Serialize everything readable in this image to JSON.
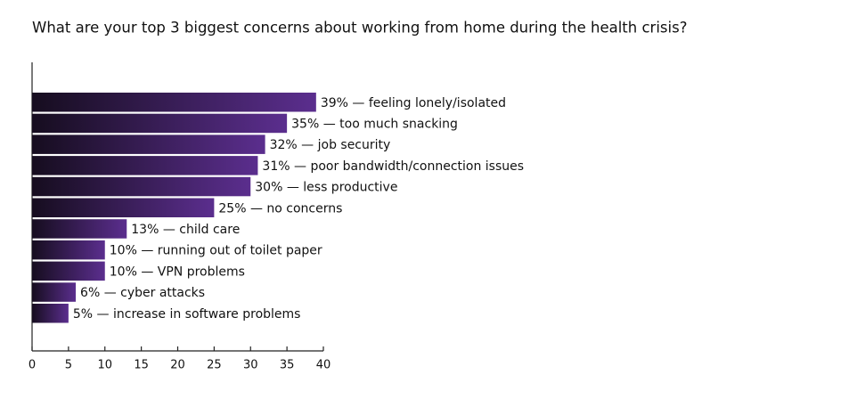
{
  "chart_data": {
    "type": "hbar",
    "title": "What are your top 3 biggest concerns about working from home during the health crisis?",
    "values": [
      39,
      35,
      32,
      31,
      30,
      25,
      13,
      10,
      10,
      6,
      5
    ],
    "value_labels": [
      "39% — feeling lonely/isolated",
      "35% — too much snacking",
      "32% — job security",
      "31% — poor bandwidth/connection issues",
      "30% — less productive",
      "25% — no concerns",
      "13% — child care",
      "10% — running out of toilet paper",
      "10% — VPN problems",
      "6% — cyber attacks",
      "5% — increase in software problems"
    ],
    "color": "#5b2e8e",
    "xlim": [
      0,
      40
    ],
    "xticks": [
      0,
      5,
      10,
      15,
      20,
      25,
      30,
      35,
      40
    ]
  }
}
